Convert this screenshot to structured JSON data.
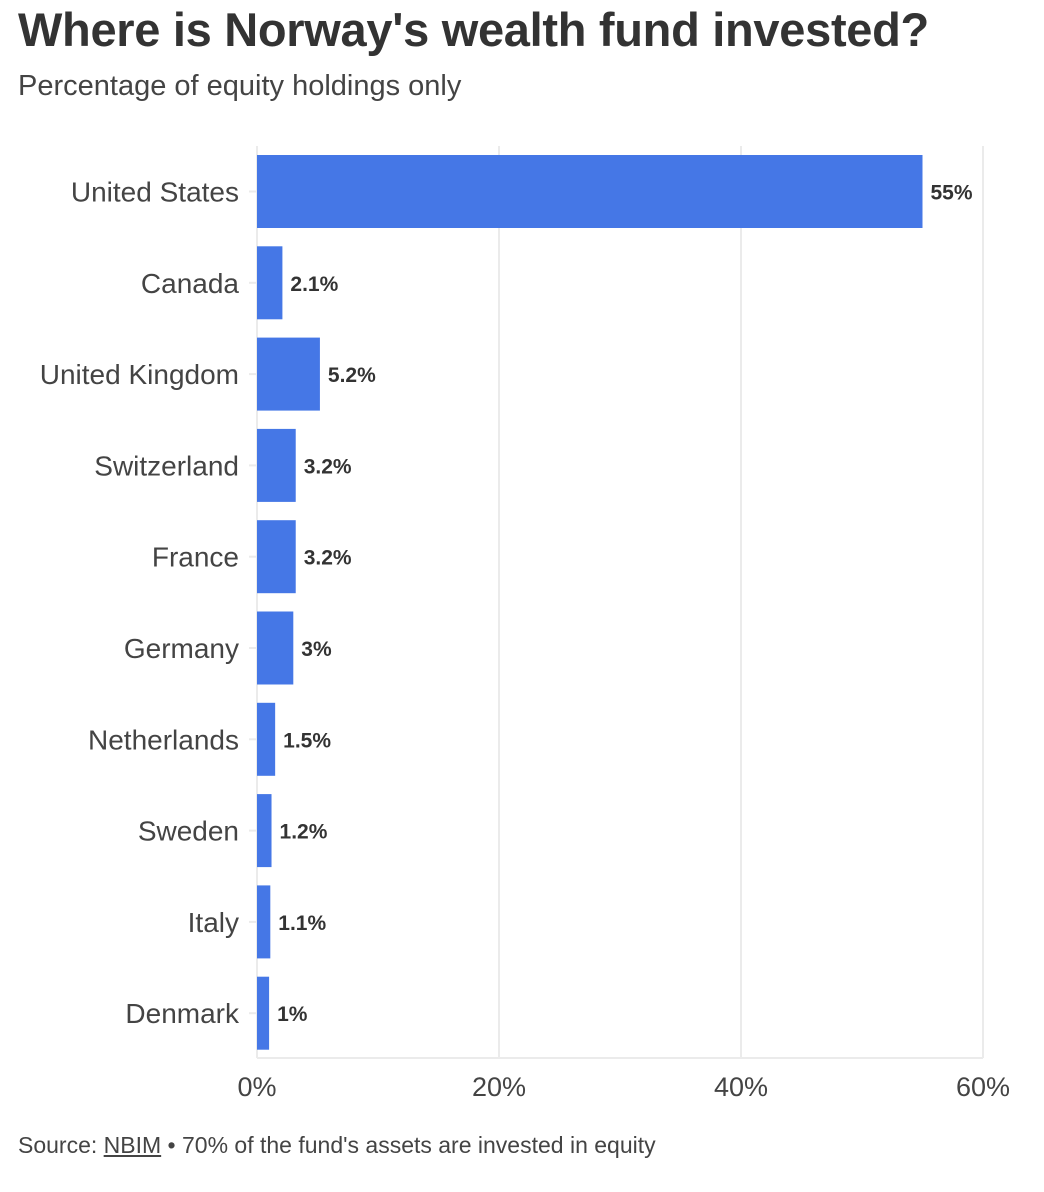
{
  "header": {
    "title": "Where is Norway's wealth fund invested?",
    "subtitle": "Percentage of equity holdings only"
  },
  "footer": {
    "source_label": "Source:",
    "source_link": "NBIM",
    "separator": "•",
    "note": "70% of the fund's assets are invested in equity"
  },
  "colors": {
    "bar": "#4577E6",
    "grid": "#EBEBEB",
    "text": "#333333"
  },
  "chart_data": {
    "type": "bar",
    "orientation": "horizontal",
    "title": "Where is Norway's wealth fund invested?",
    "subtitle": "Percentage of equity holdings only",
    "categories": [
      "United States",
      "Canada",
      "United Kingdom",
      "Switzerland",
      "France",
      "Germany",
      "Netherlands",
      "Sweden",
      "Italy",
      "Denmark"
    ],
    "values": [
      55,
      2.1,
      5.2,
      3.2,
      3.2,
      3,
      1.5,
      1.2,
      1.1,
      1
    ],
    "data_labels": [
      "55%",
      "2.1%",
      "5.2%",
      "3.2%",
      "3.2%",
      "3%",
      "1.5%",
      "1.2%",
      "1.1%",
      "1%"
    ],
    "xlim": [
      0,
      60
    ],
    "xticks": [
      0,
      20,
      40,
      60
    ],
    "xtick_labels": [
      "0%",
      "20%",
      "40%",
      "60%"
    ],
    "xlabel": "",
    "ylabel": "",
    "grid": true,
    "legend": "none"
  }
}
